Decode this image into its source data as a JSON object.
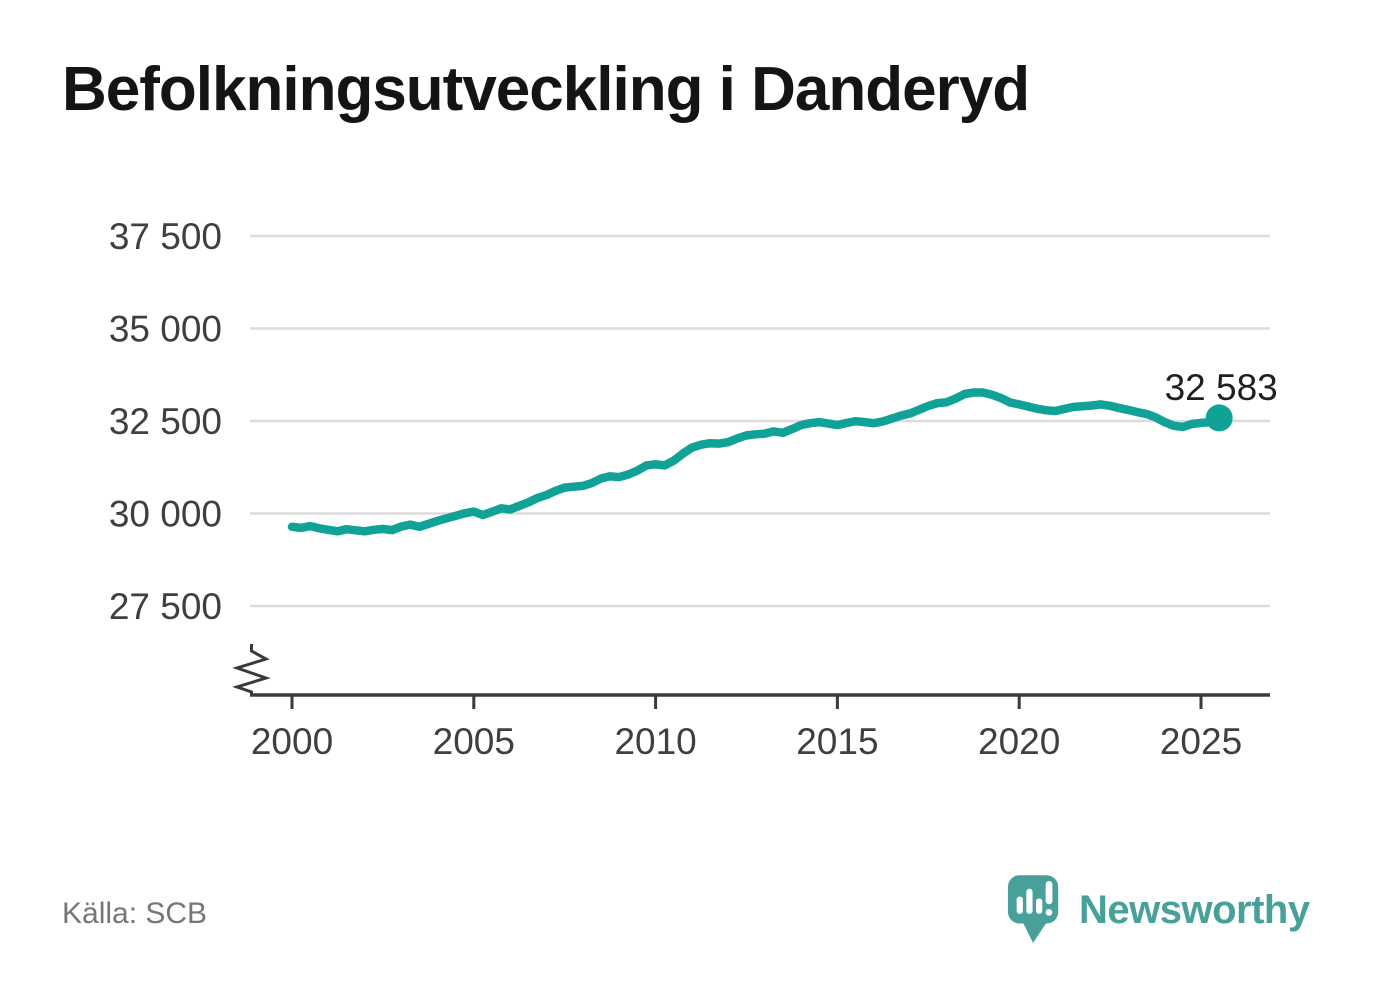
{
  "title": "Befolkningsutveckling i Danderyd",
  "source": {
    "text": "Källa: SCB"
  },
  "branding": {
    "name": "Newsworthy",
    "icon": "newsworthy-bubble-chart-icon"
  },
  "colors": {
    "line": "#10a296",
    "marker": "#10a296",
    "grid": "#dcdcdc",
    "axis": "#3a3a3a",
    "tick_text": "#3f3f3f",
    "title_text": "#141414",
    "value_label": "#1f1f1f",
    "source_text": "#767676",
    "brand": "#47a09a"
  },
  "chart_data": {
    "type": "line",
    "title": "Befolkningsutveckling i Danderyd",
    "xlabel": "",
    "ylabel": "",
    "x_start": 2000,
    "x_step": 0.25,
    "x_unit": "year (quarterly population)",
    "values": [
      29640,
      29610,
      29660,
      29600,
      29560,
      29520,
      29575,
      29545,
      29520,
      29560,
      29585,
      29550,
      29645,
      29700,
      29640,
      29720,
      29800,
      29870,
      29935,
      30005,
      30050,
      29960,
      30045,
      30140,
      30110,
      30205,
      30300,
      30420,
      30500,
      30610,
      30700,
      30725,
      30745,
      30825,
      30945,
      31005,
      30985,
      31055,
      31160,
      31300,
      31330,
      31300,
      31430,
      31620,
      31780,
      31860,
      31900,
      31890,
      31930,
      32030,
      32110,
      32140,
      32160,
      32220,
      32180,
      32280,
      32390,
      32440,
      32470,
      32430,
      32390,
      32445,
      32495,
      32470,
      32440,
      32490,
      32565,
      32645,
      32705,
      32805,
      32905,
      32985,
      33005,
      33105,
      33230,
      33270,
      33270,
      33210,
      33120,
      33000,
      32950,
      32890,
      32830,
      32790,
      32770,
      32830,
      32880,
      32900,
      32920,
      32950,
      32910,
      32850,
      32800,
      32740,
      32690,
      32600,
      32470,
      32370,
      32340,
      32420,
      32450,
      32470,
      32583
    ],
    "x_ticks": [
      2000,
      2005,
      2010,
      2015,
      2020,
      2025
    ],
    "y_ticks": [
      37500,
      35000,
      32500,
      30000,
      27500
    ],
    "y_tick_labels": [
      "37 500",
      "35 000",
      "32 500",
      "30 000",
      "27 500"
    ],
    "ylim": [
      26800,
      38200
    ],
    "xlim": [
      1998.8,
      2026.9
    ],
    "grid": "horizontal",
    "axis_break": true,
    "legend": "none",
    "end_label": "32 583",
    "end_value": 32583,
    "source": "SCB"
  }
}
